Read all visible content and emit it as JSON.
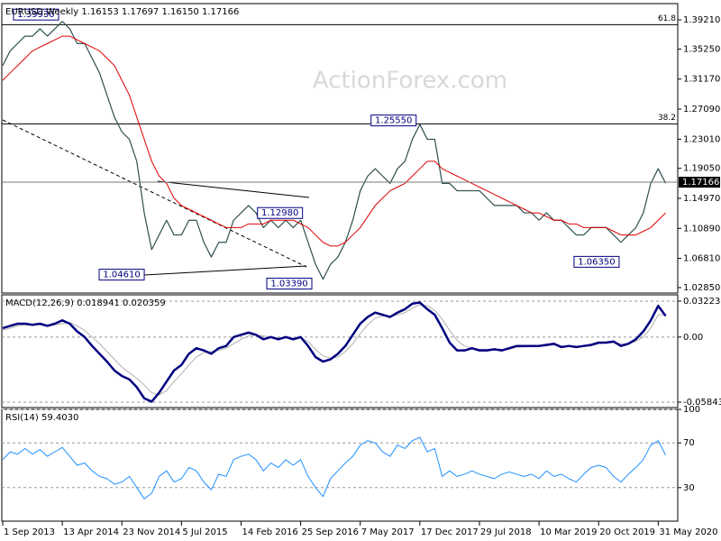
{
  "chart_data": [
    {
      "type": "line",
      "title": "EURUSD,Weekly  1.16153 1.17697 1.16150 1.17166",
      "watermark": "ActionForex.com",
      "xlim": [
        0,
        362
      ],
      "ylim": [
        1.0211,
        1.4142
      ],
      "yticks": [
        {
          "value": 1.3921,
          "label": "1.39210"
        },
        {
          "value": 1.3525,
          "label": "1.35250"
        },
        {
          "value": 1.3117,
          "label": "1.31170"
        },
        {
          "value": 1.2709,
          "label": "1.27090"
        },
        {
          "value": 1.2301,
          "label": "1.23010"
        },
        {
          "value": 1.1905,
          "label": "1.19050"
        },
        {
          "value": 1.1497,
          "label": "1.14970"
        },
        {
          "value": 1.1089,
          "label": "1.10890"
        },
        {
          "value": 1.0681,
          "label": "1.06810"
        },
        {
          "value": 1.0285,
          "label": "1.02850"
        }
      ],
      "levels": [
        {
          "value": 1.3855,
          "label": "61.8"
        },
        {
          "value": 1.2508,
          "label": "38.2"
        }
      ],
      "last_price": {
        "value": 1.17166,
        "label": "1.17166"
      },
      "annotations": [
        {
          "label": "1.39930",
          "x": 30,
          "value": 1.3993
        },
        {
          "label": "1.25550",
          "x": 222,
          "value": 1.2555
        },
        {
          "label": "1.12980",
          "x": 161,
          "value": 1.1298
        },
        {
          "label": "1.04610",
          "x": 76,
          "value": 1.0461
        },
        {
          "label": "1.03390",
          "x": 166,
          "value": 1.0339
        },
        {
          "label": "1.06350",
          "x": 331,
          "value": 1.0635
        }
      ],
      "x": [
        0,
        4,
        8,
        12,
        16,
        20,
        24,
        28,
        32,
        36,
        40,
        44,
        48,
        52,
        56,
        60,
        64,
        68,
        72,
        76,
        80,
        84,
        88,
        92,
        96,
        100,
        104,
        108,
        112,
        116,
        120,
        124,
        128,
        132,
        136,
        140,
        144,
        148,
        152,
        156,
        160,
        164,
        168,
        172,
        176,
        180,
        184,
        188,
        192,
        196,
        200,
        204,
        208,
        212,
        216,
        220,
        224,
        228,
        232,
        236,
        240,
        244,
        248,
        252,
        256,
        260,
        264,
        268,
        272,
        276,
        280,
        284,
        288,
        292,
        296,
        300,
        304,
        308,
        312,
        316,
        320,
        324,
        328,
        332,
        336,
        340,
        344,
        348,
        352,
        356
      ],
      "series": [
        {
          "color": "#2f4f4f",
          "width": 1.2,
          "values": [
            1.33,
            1.35,
            1.36,
            1.37,
            1.37,
            1.38,
            1.37,
            1.38,
            1.39,
            1.38,
            1.36,
            1.36,
            1.34,
            1.32,
            1.29,
            1.26,
            1.24,
            1.23,
            1.2,
            1.13,
            1.08,
            1.1,
            1.12,
            1.1,
            1.1,
            1.12,
            1.12,
            1.09,
            1.07,
            1.09,
            1.09,
            1.12,
            1.13,
            1.14,
            1.13,
            1.11,
            1.12,
            1.11,
            1.12,
            1.11,
            1.12,
            1.09,
            1.06,
            1.04,
            1.06,
            1.07,
            1.09,
            1.12,
            1.16,
            1.18,
            1.19,
            1.18,
            1.17,
            1.19,
            1.2,
            1.23,
            1.25,
            1.23,
            1.23,
            1.17,
            1.17,
            1.16,
            1.16,
            1.16,
            1.16,
            1.15,
            1.14,
            1.14,
            1.14,
            1.14,
            1.13,
            1.13,
            1.12,
            1.13,
            1.12,
            1.12,
            1.11,
            1.1,
            1.1,
            1.11,
            1.11,
            1.11,
            1.1,
            1.09,
            1.1,
            1.11,
            1.13,
            1.17,
            1.19,
            1.17
          ]
        },
        {
          "color": "#e00000",
          "width": 1,
          "values": [
            1.31,
            1.32,
            1.33,
            1.34,
            1.35,
            1.355,
            1.36,
            1.365,
            1.37,
            1.37,
            1.365,
            1.36,
            1.355,
            1.35,
            1.34,
            1.33,
            1.31,
            1.29,
            1.26,
            1.23,
            1.2,
            1.18,
            1.17,
            1.15,
            1.14,
            1.135,
            1.13,
            1.125,
            1.12,
            1.115,
            1.11,
            1.11,
            1.11,
            1.115,
            1.115,
            1.115,
            1.12,
            1.12,
            1.12,
            1.12,
            1.115,
            1.11,
            1.1,
            1.09,
            1.085,
            1.085,
            1.09,
            1.1,
            1.11,
            1.125,
            1.14,
            1.15,
            1.16,
            1.165,
            1.17,
            1.18,
            1.19,
            1.2,
            1.2,
            1.19,
            1.185,
            1.18,
            1.175,
            1.17,
            1.165,
            1.16,
            1.155,
            1.15,
            1.145,
            1.14,
            1.135,
            1.13,
            1.13,
            1.125,
            1.12,
            1.12,
            1.115,
            1.115,
            1.11,
            1.11,
            1.11,
            1.11,
            1.105,
            1.1,
            1.1,
            1.1,
            1.105,
            1.11,
            1.12,
            1.13
          ]
        }
      ]
    },
    {
      "type": "line",
      "title": "MACD(12,26,9) 0.018941 0.020359",
      "xlim": [
        0,
        362
      ],
      "ylim": [
        -0.0633,
        0.0379
      ],
      "yticks": [
        0.032235,
        {
          "value": 0,
          "label": "0.00"
        },
        -0.058434
      ],
      "grid": true,
      "x": [
        0,
        4,
        8,
        12,
        16,
        20,
        24,
        28,
        32,
        36,
        40,
        44,
        48,
        52,
        56,
        60,
        64,
        68,
        72,
        76,
        80,
        84,
        88,
        92,
        96,
        100,
        104,
        108,
        112,
        116,
        120,
        124,
        128,
        132,
        136,
        140,
        144,
        148,
        152,
        156,
        160,
        164,
        168,
        172,
        176,
        180,
        184,
        188,
        192,
        196,
        200,
        204,
        208,
        212,
        216,
        220,
        224,
        228,
        232,
        236,
        240,
        244,
        248,
        252,
        256,
        260,
        264,
        268,
        272,
        276,
        280,
        284,
        288,
        292,
        296,
        300,
        304,
        308,
        312,
        316,
        320,
        324,
        328,
        332,
        336,
        340,
        344,
        348,
        352,
        356
      ],
      "series": [
        {
          "color": "#b0b0b0",
          "width": 1,
          "values": [
            0.006,
            0.008,
            0.01,
            0.011,
            0.011,
            0.011,
            0.011,
            0.011,
            0.012,
            0.013,
            0.01,
            0.006,
            0.0,
            -0.006,
            -0.013,
            -0.02,
            -0.027,
            -0.032,
            -0.037,
            -0.043,
            -0.05,
            -0.052,
            -0.048,
            -0.04,
            -0.033,
            -0.025,
            -0.018,
            -0.014,
            -0.013,
            -0.012,
            -0.01,
            -0.006,
            -0.002,
            0.001,
            0.002,
            0.001,
            0.0,
            -0.001,
            -0.001,
            -0.001,
            -0.001,
            -0.004,
            -0.011,
            -0.017,
            -0.019,
            -0.018,
            -0.013,
            -0.006,
            0.003,
            0.011,
            0.017,
            0.019,
            0.019,
            0.02,
            0.022,
            0.026,
            0.029,
            0.028,
            0.024,
            0.016,
            0.006,
            -0.003,
            -0.008,
            -0.01,
            -0.011,
            -0.011,
            -0.011,
            -0.011,
            -0.011,
            -0.009,
            -0.009,
            -0.008,
            -0.008,
            -0.008,
            -0.007,
            -0.008,
            -0.008,
            -0.008,
            -0.008,
            -0.008,
            -0.006,
            -0.005,
            -0.005,
            -0.006,
            -0.006,
            -0.004,
            0.0,
            0.008,
            0.02,
            0.02
          ]
        },
        {
          "color": "#000080",
          "width": 2.5,
          "values": [
            0.008,
            0.01,
            0.012,
            0.012,
            0.011,
            0.012,
            0.01,
            0.012,
            0.015,
            0.012,
            0.005,
            0.0,
            -0.008,
            -0.015,
            -0.022,
            -0.03,
            -0.035,
            -0.038,
            -0.045,
            -0.055,
            -0.058,
            -0.05,
            -0.04,
            -0.03,
            -0.025,
            -0.015,
            -0.01,
            -0.012,
            -0.015,
            -0.01,
            -0.008,
            0.0,
            0.002,
            0.004,
            0.002,
            -0.002,
            0.0,
            -0.002,
            0.0,
            -0.002,
            0.0,
            -0.008,
            -0.018,
            -0.022,
            -0.02,
            -0.015,
            -0.008,
            0.002,
            0.012,
            0.018,
            0.022,
            0.02,
            0.018,
            0.022,
            0.025,
            0.03,
            0.031,
            0.025,
            0.02,
            0.008,
            -0.005,
            -0.012,
            -0.012,
            -0.01,
            -0.012,
            -0.012,
            -0.011,
            -0.012,
            -0.01,
            -0.008,
            -0.008,
            -0.008,
            -0.008,
            -0.007,
            -0.006,
            -0.009,
            -0.008,
            -0.009,
            -0.008,
            -0.007,
            -0.005,
            -0.005,
            -0.004,
            -0.008,
            -0.006,
            -0.002,
            0.005,
            0.015,
            0.028,
            0.019
          ]
        }
      ]
    },
    {
      "type": "line",
      "title": "RSI(14) 59.4030",
      "xlim": [
        0,
        362
      ],
      "ylim": [
        0,
        100
      ],
      "yticks": [
        100,
        70,
        30
      ],
      "grid": true,
      "xticks": [
        {
          "value": 0,
          "label": "1 Sep 2013"
        },
        {
          "value": 32,
          "label": "13 Apr 2014"
        },
        {
          "value": 64,
          "label": "23 Nov 2014"
        },
        {
          "value": 96,
          "label": "5 Jul 2015"
        },
        {
          "value": 128,
          "label": "14 Feb 2016"
        },
        {
          "value": 160,
          "label": "25 Sep 2016"
        },
        {
          "value": 192,
          "label": "7 May 2017"
        },
        {
          "value": 224,
          "label": "17 Dec 2017"
        },
        {
          "value": 256,
          "label": "29 Jul 2018"
        },
        {
          "value": 288,
          "label": "10 Mar 2019"
        },
        {
          "value": 320,
          "label": "20 Oct 2019"
        },
        {
          "value": 352,
          "label": "31 May 2020"
        }
      ],
      "x": [
        0,
        4,
        8,
        12,
        16,
        20,
        24,
        28,
        32,
        36,
        40,
        44,
        48,
        52,
        56,
        60,
        64,
        68,
        72,
        76,
        80,
        84,
        88,
        92,
        96,
        100,
        104,
        108,
        112,
        116,
        120,
        124,
        128,
        132,
        136,
        140,
        144,
        148,
        152,
        156,
        160,
        164,
        168,
        172,
        176,
        180,
        184,
        188,
        192,
        196,
        200,
        204,
        208,
        212,
        216,
        220,
        224,
        228,
        232,
        236,
        240,
        244,
        248,
        252,
        256,
        260,
        264,
        268,
        272,
        276,
        280,
        284,
        288,
        292,
        296,
        300,
        304,
        308,
        312,
        316,
        320,
        324,
        328,
        332,
        336,
        340,
        344,
        348,
        352,
        356
      ],
      "series": [
        {
          "color": "#1e90ff",
          "width": 1,
          "values": [
            55,
            62,
            60,
            65,
            60,
            64,
            58,
            62,
            66,
            58,
            50,
            52,
            45,
            40,
            38,
            33,
            35,
            40,
            30,
            20,
            25,
            40,
            45,
            35,
            38,
            48,
            45,
            35,
            28,
            42,
            40,
            55,
            58,
            60,
            55,
            45,
            52,
            48,
            55,
            50,
            55,
            40,
            30,
            22,
            38,
            45,
            52,
            58,
            68,
            72,
            70,
            62,
            58,
            68,
            65,
            72,
            75,
            62,
            65,
            40,
            45,
            40,
            42,
            45,
            42,
            40,
            38,
            42,
            44,
            42,
            40,
            42,
            38,
            45,
            40,
            42,
            38,
            35,
            42,
            48,
            50,
            48,
            40,
            35,
            42,
            48,
            55,
            68,
            72,
            59
          ]
        }
      ]
    }
  ]
}
